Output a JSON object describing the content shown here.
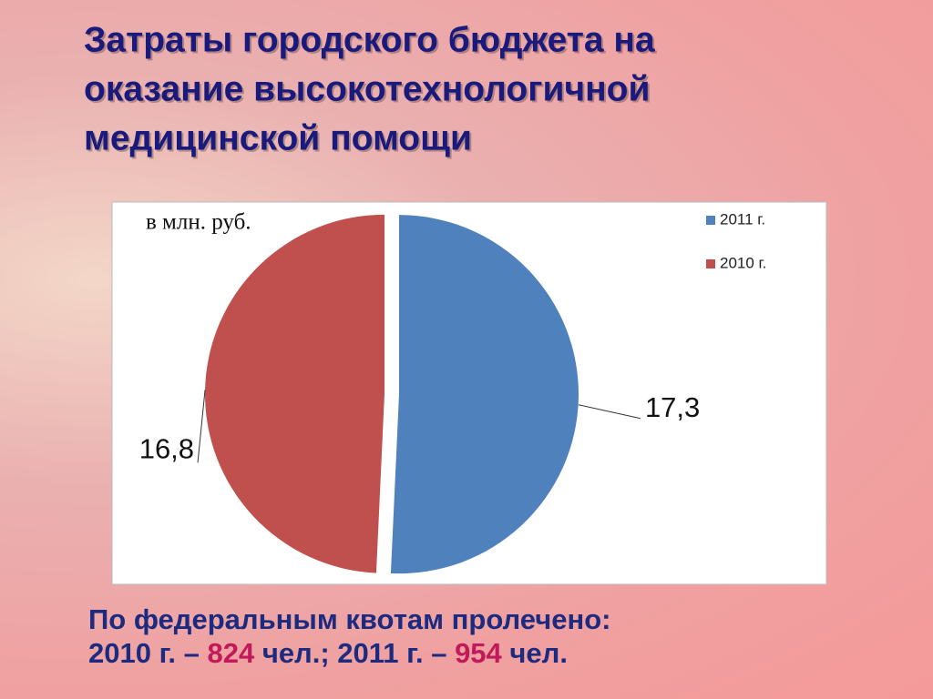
{
  "chart_data": {
    "type": "pie",
    "title_lines": [
      "Затраты городского бюджета на",
      "оказание высокотехнологичной",
      "медицинской помощи"
    ],
    "subtitle": "в млн. руб.",
    "categories": [
      "2011 г.",
      "2010 г."
    ],
    "values": [
      17.3,
      16.8
    ],
    "value_labels": [
      "17,3",
      "16,8"
    ],
    "colors": [
      "#4f81bd",
      "#c0504d"
    ],
    "legend": "top-right"
  },
  "footer": {
    "line1": "По федеральным квотам пролечено:",
    "line2": [
      "2010 г. – ",
      "824",
      " чел.; 2011 г. – ",
      "954",
      " чел."
    ]
  }
}
